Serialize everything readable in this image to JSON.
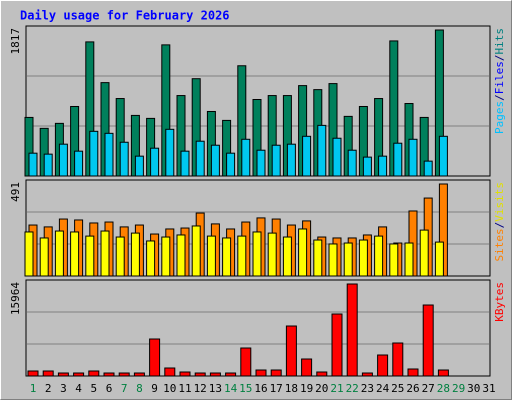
{
  "title": "Daily usage for February 2026",
  "days": [
    {
      "label": 1,
      "color": "#008040"
    },
    {
      "label": 2,
      "color": "#000000"
    },
    {
      "label": 3,
      "color": "#000000"
    },
    {
      "label": 4,
      "color": "#000000"
    },
    {
      "label": 5,
      "color": "#000000"
    },
    {
      "label": 6,
      "color": "#000000"
    },
    {
      "label": 7,
      "color": "#008040"
    },
    {
      "label": 8,
      "color": "#008040"
    },
    {
      "label": 9,
      "color": "#000000"
    },
    {
      "label": 10,
      "color": "#000000"
    },
    {
      "label": 11,
      "color": "#000000"
    },
    {
      "label": 12,
      "color": "#000000"
    },
    {
      "label": 13,
      "color": "#000000"
    },
    {
      "label": 14,
      "color": "#008040"
    },
    {
      "label": 15,
      "color": "#008040"
    },
    {
      "label": 16,
      "color": "#000000"
    },
    {
      "label": 17,
      "color": "#000000"
    },
    {
      "label": 18,
      "color": "#000000"
    },
    {
      "label": 19,
      "color": "#000000"
    },
    {
      "label": 20,
      "color": "#000000"
    },
    {
      "label": 21,
      "color": "#008040"
    },
    {
      "label": 22,
      "color": "#008040"
    },
    {
      "label": 23,
      "color": "#000000"
    },
    {
      "label": 24,
      "color": "#000000"
    },
    {
      "label": 25,
      "color": "#000000"
    },
    {
      "label": 26,
      "color": "#000000"
    },
    {
      "label": 27,
      "color": "#000000"
    },
    {
      "label": 28,
      "color": "#008040"
    },
    {
      "label": 29,
      "color": "#008040"
    },
    {
      "label": 30,
      "color": "#000000"
    },
    {
      "label": 31,
      "color": "#000000"
    }
  ],
  "chart_data": [
    {
      "type": "bar",
      "ylim": [
        0,
        1817
      ],
      "yticks": [
        1817
      ],
      "legend": [
        {
          "text": "Pages",
          "color": "#00c0ff"
        },
        {
          "text": "/",
          "color": "#000080"
        },
        {
          "text": "Files",
          "color": "#0000ff"
        },
        {
          "text": "/",
          "color": "#000080"
        },
        {
          "text": "Hits",
          "color": "#008080"
        }
      ],
      "series": [
        {
          "name": "Hits",
          "color": "#00805c",
          "values": [
            729,
            593,
            655,
            865,
            1669,
            1162,
            964,
            754,
            717,
            1632,
            1001,
            1211,
            803,
            692,
            1372,
            952,
            1001,
            1001,
            1125,
            1075,
            1150,
            742,
            865,
            964,
            1681,
            902,
            729,
            1817,
            null,
            null,
            null
          ]
        },
        {
          "name": "Pages",
          "color": "#00c8f0",
          "values": [
            284,
            272,
            396,
            309,
            556,
            531,
            420,
            247,
            346,
            581,
            309,
            433,
            383,
            284,
            457,
            321,
            383,
            396,
            494,
            630,
            470,
            321,
            235,
            247,
            408,
            457,
            185,
            494,
            null,
            null,
            null
          ]
        }
      ]
    },
    {
      "type": "bar",
      "ylim": [
        0,
        491
      ],
      "yticks": [
        491
      ],
      "legend": [
        {
          "text": "Sites",
          "color": "#ff8000"
        },
        {
          "text": "/",
          "color": "#000080"
        },
        {
          "text": "Visits",
          "color": "#e0e000"
        }
      ],
      "series": [
        {
          "name": "Sites",
          "color": "#ff8000",
          "values": [
            272,
            262,
            304,
            299,
            283,
            288,
            262,
            272,
            224,
            251,
            256,
            336,
            278,
            251,
            288,
            310,
            304,
            272,
            294,
            208,
            203,
            203,
            219,
            262,
            176,
            347,
            416,
            491,
            null,
            null,
            null
          ]
        },
        {
          "name": "Visits",
          "color": "#ffff00",
          "values": [
            235,
            203,
            240,
            235,
            213,
            240,
            208,
            229,
            187,
            208,
            219,
            267,
            213,
            203,
            213,
            235,
            229,
            208,
            251,
            192,
            171,
            176,
            192,
            213,
            171,
            176,
            245,
            181,
            null,
            null,
            null
          ]
        }
      ]
    },
    {
      "type": "bar",
      "ylim": [
        0,
        15964
      ],
      "yticks": [
        15964
      ],
      "legend": [
        {
          "text": "KBytes",
          "color": "#ff0000"
        }
      ],
      "series": [
        {
          "name": "KBytes",
          "color": "#ff0000",
          "values": [
            868,
            868,
            520,
            520,
            868,
            520,
            520,
            520,
            6420,
            1388,
            694,
            520,
            520,
            520,
            4858,
            1041,
            1041,
            8675,
            2950,
            694,
            10757,
            15964,
            520,
            3644,
            5726,
            1215,
            12319,
            1041,
            null,
            null,
            null
          ]
        }
      ]
    }
  ]
}
